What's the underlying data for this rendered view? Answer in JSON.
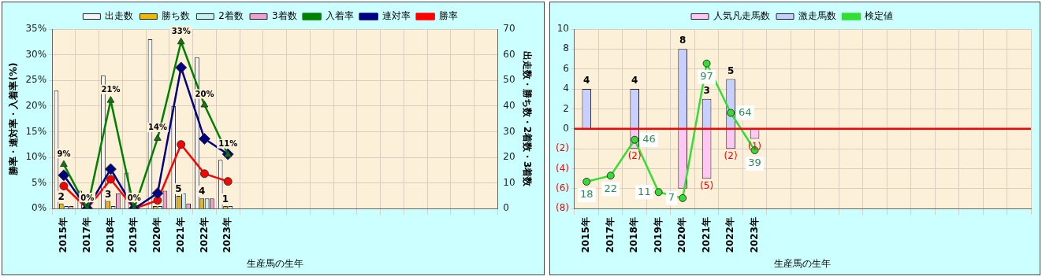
{
  "chart_data": [
    {
      "type": "bar",
      "xlabel": "生産馬の生年",
      "ylabel": "勝率・連対率・入着率(%)",
      "y2label": "出走数・勝ち数・2着数・3着数",
      "categories": [
        "2015年",
        "2017年",
        "2018年",
        "2019年",
        "2020年",
        "2021年",
        "2022年",
        "2023年",
        null,
        null,
        null,
        null,
        null,
        null,
        null,
        null,
        null,
        null,
        null
      ],
      "series": [
        {
          "name": "出走数",
          "color": "#f4f4f4",
          "axis": "y2",
          "values": [
            46,
            7,
            52,
            14,
            66,
            40,
            59,
            19,
            null,
            null,
            null,
            null,
            null,
            null,
            null,
            null,
            null,
            null,
            null
          ]
        },
        {
          "name": "勝ち数",
          "color": "#f0b800",
          "axis": "y2",
          "values": [
            2,
            0,
            3,
            0,
            1,
            5,
            4,
            1,
            null,
            null,
            null,
            null,
            null,
            null,
            null,
            null,
            null,
            null,
            null
          ],
          "value_labels": [
            "2",
            null,
            "3",
            null,
            null,
            "5",
            "4",
            "1",
            null,
            null,
            null,
            null,
            null,
            null,
            null,
            null,
            null,
            null,
            null
          ]
        },
        {
          "name": "2着数",
          "color": "#c8f0f0",
          "axis": "y2",
          "values": [
            1,
            0,
            1,
            0,
            1,
            6,
            4,
            1,
            null,
            null,
            null,
            null,
            null,
            null,
            null,
            null,
            null,
            null,
            null
          ]
        },
        {
          "name": "3着数",
          "color": "#f0a0d0",
          "axis": "y2",
          "values": [
            1,
            0,
            6,
            0,
            7,
            2,
            4,
            0,
            null,
            null,
            null,
            null,
            null,
            null,
            null,
            null,
            null,
            null,
            null
          ]
        },
        {
          "name": "入着率",
          "type": "line",
          "color": "#008000",
          "marker": "triangle",
          "values": [
            8.6,
            0,
            21.1,
            0,
            13.7,
            32.5,
            20.2,
            10.5,
            null,
            null,
            null,
            null,
            null,
            null,
            null,
            null,
            null,
            null,
            null
          ],
          "value_labels": [
            "9%",
            "0%",
            "21%",
            "0%",
            "14%",
            "33%",
            "20%",
            "11%",
            null,
            null,
            null,
            null,
            null,
            null,
            null,
            null,
            null,
            null,
            null
          ]
        },
        {
          "name": "連対率",
          "type": "line",
          "color": "#000080",
          "marker": "diamond",
          "values": [
            6.5,
            0,
            7.7,
            0,
            3.0,
            27.5,
            13.6,
            10.6,
            null,
            null,
            null,
            null,
            null,
            null,
            null,
            null,
            null,
            null,
            null
          ]
        },
        {
          "name": "勝率",
          "type": "line",
          "color": "#ff0000",
          "marker": "circle",
          "values": [
            4.4,
            0,
            5.7,
            0,
            1.6,
            12.5,
            6.8,
            5.3,
            null,
            null,
            null,
            null,
            null,
            null,
            null,
            null,
            null,
            null,
            null
          ]
        }
      ],
      "ylim": [
        0,
        35
      ],
      "yticks": [
        {
          "value": 0,
          "label": "0%"
        },
        {
          "value": 5,
          "label": "5%"
        },
        {
          "value": 10,
          "label": "10%"
        },
        {
          "value": 15,
          "label": "15%"
        },
        {
          "value": 20,
          "label": "20%"
        },
        {
          "value": 25,
          "label": "25%"
        },
        {
          "value": 30,
          "label": "30%"
        },
        {
          "value": 35,
          "label": "35%"
        }
      ],
      "y2lim": [
        0,
        70
      ],
      "y2ticks": [
        0,
        10,
        20,
        30,
        40,
        50,
        60,
        70
      ],
      "grid": true,
      "legend": "top"
    },
    {
      "type": "bar",
      "xlabel": "生産馬の生年",
      "stacked": true,
      "categories": [
        "2015年",
        "2017年",
        "2018年",
        "2019年",
        "2020年",
        "2021年",
        "2022年",
        "2023年",
        null,
        null,
        null,
        null,
        null,
        null,
        null,
        null,
        null,
        null,
        null
      ],
      "series": [
        {
          "name": "人気凡走馬数",
          "color": "#ffc8f4",
          "values": [
            null,
            null,
            -2,
            null,
            -6,
            -5,
            -2,
            -1,
            null,
            null,
            null,
            null,
            null,
            null,
            null,
            null,
            null,
            null,
            null
          ],
          "value_labels": [
            null,
            null,
            "(2)",
            null,
            null,
            "(5)",
            "(2)",
            "(1)",
            null,
            null,
            null,
            null,
            null,
            null,
            null,
            null,
            null,
            null,
            null
          ]
        },
        {
          "name": "激走馬数",
          "color": "#c8d0ff",
          "values": [
            4,
            null,
            4,
            null,
            8,
            3,
            5,
            null,
            null,
            null,
            null,
            null,
            null,
            null,
            null,
            null,
            null,
            null,
            null
          ],
          "value_labels": [
            "4",
            null,
            "4",
            null,
            "8",
            "3",
            "5",
            null,
            null,
            null,
            null,
            null,
            null,
            null,
            null,
            null,
            null,
            null,
            null
          ]
        },
        {
          "name": "検定値",
          "type": "line",
          "color": "#33dd33",
          "marker": "circle",
          "axis": "y2",
          "values": [
            18,
            22,
            46,
            11,
            7,
            97,
            64,
            39,
            null,
            null,
            null,
            null,
            null,
            null,
            null,
            null,
            null,
            null,
            null
          ],
          "value_labels": [
            "18",
            "22",
            "46",
            "11",
            "7",
            "97",
            "64",
            "39",
            null,
            null,
            null,
            null,
            null,
            null,
            null,
            null,
            null,
            null,
            null
          ]
        }
      ],
      "ylim": [
        -8,
        10
      ],
      "yticks": [
        {
          "value": -8,
          "label": "(8)"
        },
        {
          "value": -6,
          "label": "(6)"
        },
        {
          "value": -4,
          "label": "(4)"
        },
        {
          "value": -2,
          "label": "(2)"
        },
        0,
        2,
        4,
        6,
        8,
        10
      ],
      "y2lim": [
        0,
        120
      ],
      "ref_lines": [
        {
          "axis": "y",
          "value": 0,
          "color": "#ff0000"
        }
      ],
      "grid": true,
      "legend": "top"
    }
  ]
}
